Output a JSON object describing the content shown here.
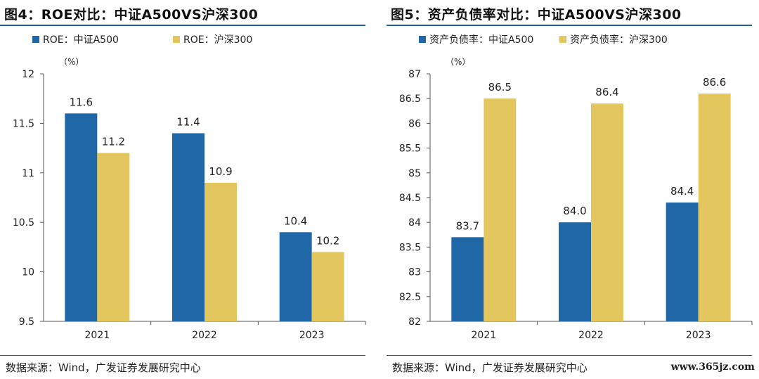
{
  "panels": [
    {
      "title": "图4：ROE对比：中证A500VS沪深300",
      "source": "数据来源：Wind，广发证券发展研究中心",
      "watermark": ""
    },
    {
      "title": "图5：资产负债率对比：中证A500VS沪深300",
      "source": "数据来源：Wind，广发证券发展研究中心",
      "watermark": "www.365jz.com"
    }
  ],
  "colors": {
    "series_a": "#1f67a7",
    "series_b": "#e4c65f",
    "rule": "#1f5fa3"
  },
  "chart_data": [
    {
      "type": "bar",
      "title": "图4：ROE对比：中证A500VS沪深300",
      "categories": [
        "2021",
        "2022",
        "2023"
      ],
      "series": [
        {
          "name": "ROE：中证A500",
          "values": [
            11.6,
            11.4,
            10.4
          ],
          "labels": [
            "11.6",
            "11.4",
            "10.4"
          ]
        },
        {
          "name": "ROE：沪深300",
          "values": [
            11.2,
            10.9,
            10.2
          ],
          "labels": [
            "11.2",
            "10.9",
            "10.2"
          ]
        }
      ],
      "unit": "（%）",
      "ylim": [
        9.5,
        12
      ],
      "yticks": [
        9.5,
        10,
        10.5,
        11,
        11.5,
        12
      ],
      "ytick_labels": [
        "9.5",
        "10",
        "10.5",
        "11",
        "11.5",
        "12"
      ],
      "legend": "top-left",
      "grid": false
    },
    {
      "type": "bar",
      "title": "图5：资产负债率对比：中证A500VS沪深300",
      "categories": [
        "2021",
        "2022",
        "2023"
      ],
      "series": [
        {
          "name": "资产负债率：中证A500",
          "values": [
            83.7,
            84.0,
            84.4
          ],
          "labels": [
            "83.7",
            "84.0",
            "84.4"
          ]
        },
        {
          "name": "资产负债率：沪深300",
          "values": [
            86.5,
            86.4,
            86.6
          ],
          "labels": [
            "86.5",
            "86.4",
            "86.6"
          ]
        }
      ],
      "unit": "（%）",
      "ylim": [
        82,
        87
      ],
      "yticks": [
        82,
        82.5,
        83,
        83.5,
        84,
        84.5,
        85,
        85.5,
        86,
        86.5,
        87
      ],
      "ytick_labels": [
        "82",
        "82.5",
        "83",
        "83.5",
        "84",
        "84.5",
        "85",
        "85.5",
        "86",
        "86.5",
        "87"
      ],
      "legend": "top-left",
      "grid": false
    }
  ]
}
